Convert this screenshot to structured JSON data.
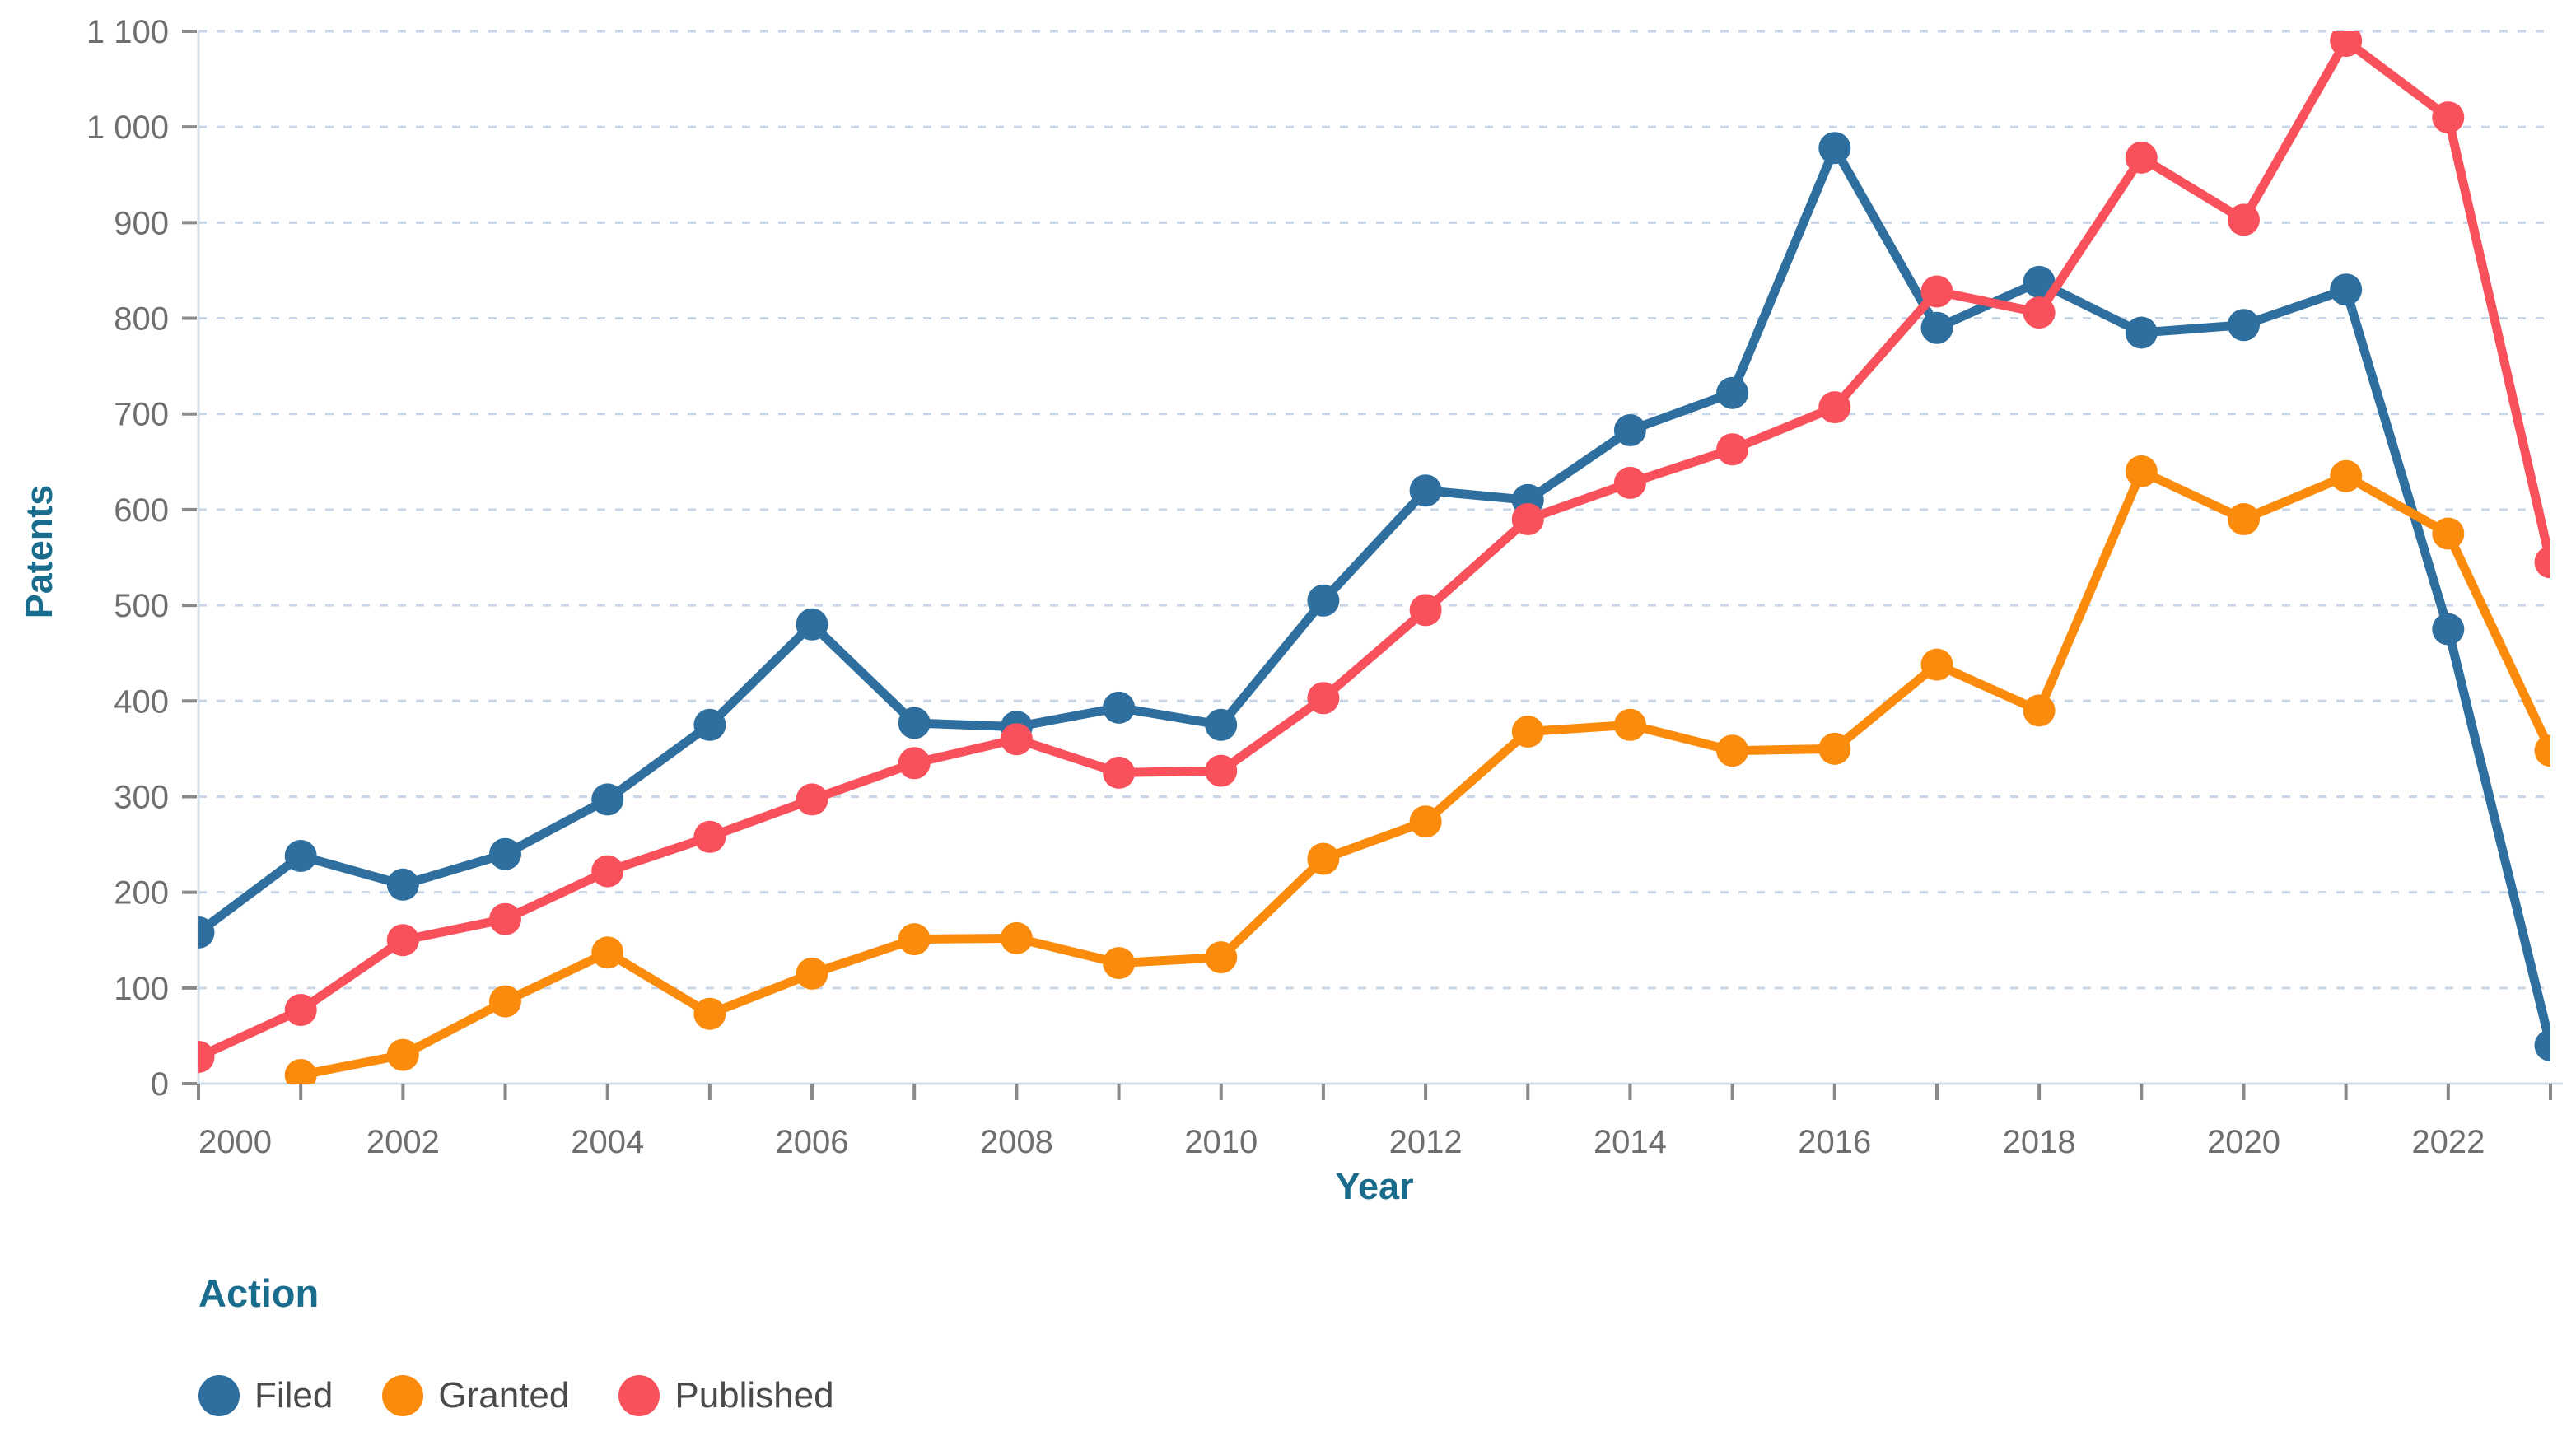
{
  "chart_data": {
    "type": "line",
    "title": "",
    "xlabel": "Year",
    "ylabel": "Patents",
    "legend_title": "Action",
    "legend_position": "bottom-left",
    "grid": "horizontal-dashed",
    "ylim": [
      0,
      1100
    ],
    "y_tick_interval": 100,
    "y_tick_labels": [
      "0",
      "100",
      "200",
      "300",
      "400",
      "500",
      "600",
      "700",
      "800",
      "900",
      "1 000",
      "1 100"
    ],
    "x_tick_labels": [
      "2000",
      "2002",
      "2004",
      "2006",
      "2008",
      "2010",
      "2012",
      "2014",
      "2016",
      "2018",
      "2020",
      "2022"
    ],
    "x": [
      2000,
      2001,
      2002,
      2003,
      2004,
      2005,
      2006,
      2007,
      2008,
      2009,
      2010,
      2011,
      2012,
      2013,
      2014,
      2015,
      2016,
      2017,
      2018,
      2019,
      2020,
      2021,
      2022,
      2023
    ],
    "series": [
      {
        "name": "Filed",
        "color": "#2e6f9f",
        "values": [
          158,
          238,
          208,
          240,
          297,
          375,
          480,
          377,
          373,
          393,
          375,
          505,
          620,
          610,
          683,
          722,
          978,
          790,
          838,
          785,
          793,
          830,
          475,
          40
        ]
      },
      {
        "name": "Granted",
        "color": "#fb8b0d",
        "values": [
          null,
          9,
          30,
          86,
          137,
          73,
          115,
          151,
          152,
          126,
          132,
          235,
          274,
          368,
          375,
          348,
          350,
          438,
          390,
          640,
          590,
          635,
          575,
          348
        ]
      },
      {
        "name": "Published",
        "color": "#f9515c",
        "values": [
          28,
          77,
          150,
          172,
          222,
          258,
          297,
          335,
          360,
          325,
          327,
          403,
          495,
          590,
          628,
          663,
          707,
          828,
          806,
          968,
          903,
          1090,
          1010,
          545
        ]
      }
    ],
    "theme": {
      "teal": "#1a6c8c",
      "tick_label": "#6f6f6f",
      "legend_label": "#4a4a4a",
      "grid": "#c9d6e8",
      "axis_line": "#cfdde9",
      "tick_mark": "#8a8a8a",
      "background": "#ffffff"
    }
  }
}
